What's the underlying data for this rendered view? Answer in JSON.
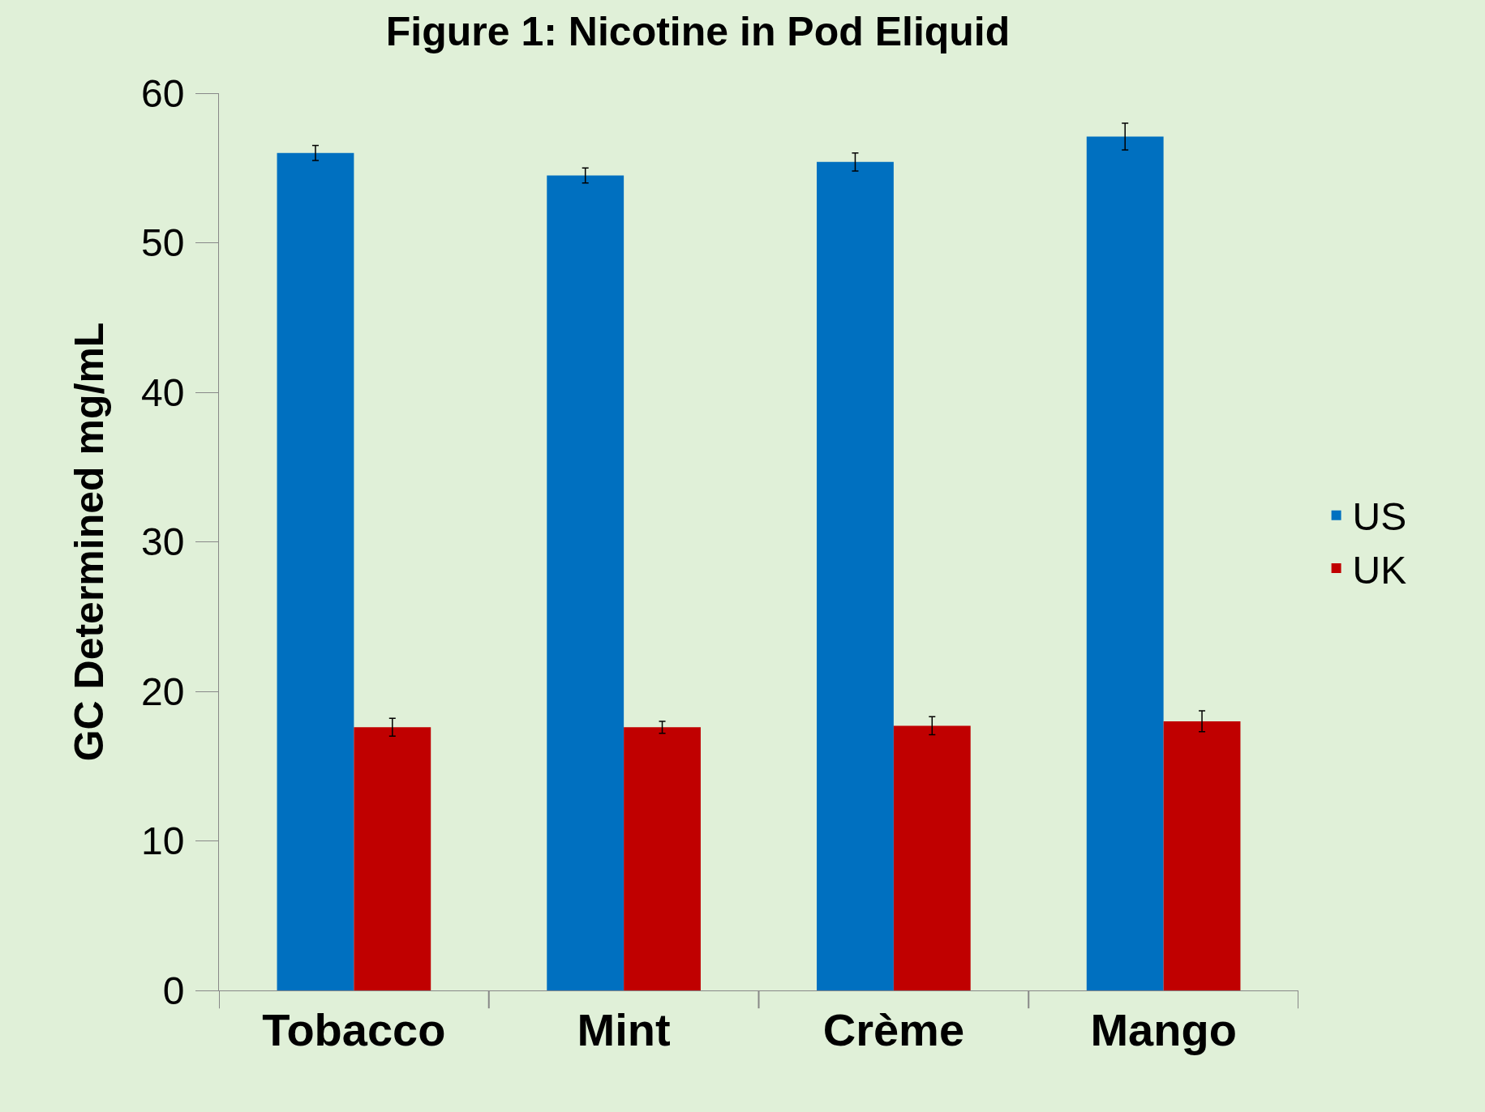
{
  "chart_data": {
    "type": "bar",
    "title": "Figure 1: Nicotine in Pod Eliquid",
    "ylabel": "GC Determined mg/mL",
    "categories": [
      "Tobacco",
      "Mint",
      "Crème",
      "Mango"
    ],
    "series": [
      {
        "name": "US",
        "color": "#0070c0",
        "values": [
          56,
          54.5,
          55.4,
          57.1
        ],
        "errors": [
          0.5,
          0.5,
          0.6,
          0.9
        ]
      },
      {
        "name": "UK",
        "color": "#c00000",
        "values": [
          17.6,
          17.6,
          17.7,
          18
        ],
        "errors": [
          0.6,
          0.4,
          0.6,
          0.7
        ]
      }
    ],
    "ylim": [
      0,
      60
    ],
    "yticks": [
      0,
      10,
      20,
      30,
      40,
      50,
      60
    ],
    "grid": false,
    "legend": "right"
  }
}
